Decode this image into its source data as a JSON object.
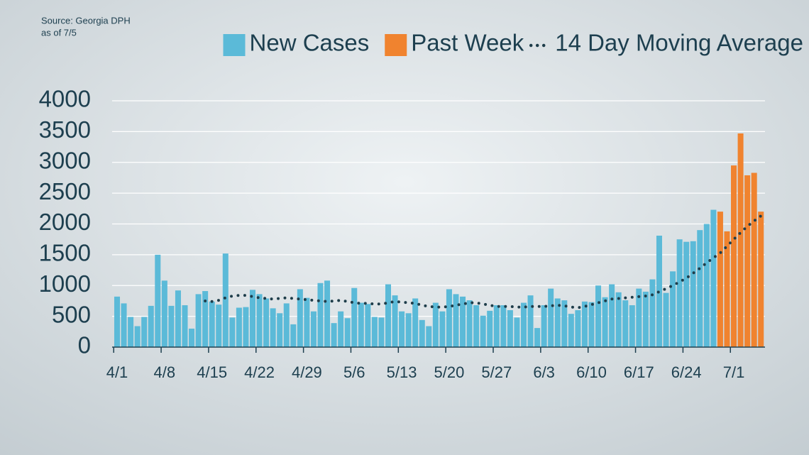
{
  "chart_data": {
    "type": "bar",
    "source": "Source: Georgia DPH",
    "as_of": "as of 7/5",
    "categories": [
      "4/1",
      null,
      null,
      null,
      null,
      null,
      null,
      "4/8",
      null,
      null,
      null,
      null,
      null,
      null,
      "4/15",
      null,
      null,
      null,
      null,
      null,
      null,
      "4/22",
      null,
      null,
      null,
      null,
      null,
      null,
      "4/29",
      null,
      null,
      null,
      null,
      null,
      null,
      "5/6",
      null,
      null,
      null,
      null,
      null,
      null,
      "5/13",
      null,
      null,
      null,
      null,
      null,
      null,
      "5/20",
      null,
      null,
      null,
      null,
      null,
      null,
      "5/27",
      null,
      null,
      null,
      null,
      null,
      null,
      "6/3",
      null,
      null,
      null,
      null,
      null,
      null,
      "6/10",
      null,
      null,
      null,
      null,
      null,
      null,
      "6/17",
      null,
      null,
      null,
      null,
      null,
      null,
      "6/24",
      null,
      null,
      null,
      null,
      null,
      null,
      "7/1",
      null,
      null,
      null,
      null
    ],
    "series": [
      {
        "name": "New Cases",
        "color": "#5bbad8",
        "values": [
          820,
          710,
          490,
          340,
          490,
          670,
          1500,
          1080,
          670,
          920,
          680,
          300,
          860,
          910,
          740,
          690,
          1520,
          480,
          640,
          650,
          930,
          860,
          790,
          630,
          550,
          710,
          370,
          940,
          800,
          580,
          1040,
          1080,
          390,
          580,
          470,
          960,
          720,
          700,
          490,
          480,
          1020,
          840,
          580,
          550,
          790,
          440,
          340,
          720,
          580,
          940,
          860,
          820,
          760,
          680,
          510,
          590,
          680,
          680,
          600,
          480,
          720,
          840,
          310,
          680,
          950,
          790,
          760,
          540,
          600,
          740,
          730,
          1000,
          810,
          1020,
          890,
          760,
          680,
          950,
          900,
          1100,
          1810,
          880,
          1230,
          1750,
          1710,
          1720,
          1900,
          2000,
          2230,
          null,
          null,
          null,
          null,
          null,
          null,
          null
        ]
      },
      {
        "name": "Past Week",
        "color": "#f0832f",
        "values": [
          null,
          null,
          null,
          null,
          null,
          null,
          null,
          null,
          null,
          null,
          null,
          null,
          null,
          null,
          null,
          null,
          null,
          null,
          null,
          null,
          null,
          null,
          null,
          null,
          null,
          null,
          null,
          null,
          null,
          null,
          null,
          null,
          null,
          null,
          null,
          null,
          null,
          null,
          null,
          null,
          null,
          null,
          null,
          null,
          null,
          null,
          null,
          null,
          null,
          null,
          null,
          null,
          null,
          null,
          null,
          null,
          null,
          null,
          null,
          null,
          null,
          null,
          null,
          null,
          null,
          null,
          null,
          null,
          null,
          null,
          null,
          null,
          null,
          null,
          null,
          null,
          null,
          null,
          null,
          null,
          null,
          null,
          null,
          null,
          null,
          null,
          null,
          null,
          null,
          2200,
          1880,
          2950,
          3470,
          2790,
          2830,
          2200
        ]
      },
      {
        "name": "14 Day Moving Average",
        "color": "#1e3d4a",
        "style": "dotted",
        "values": [
          null,
          null,
          null,
          null,
          null,
          null,
          null,
          null,
          null,
          null,
          null,
          null,
          null,
          750,
          740,
          760,
          800,
          830,
          840,
          840,
          820,
          800,
          790,
          780,
          790,
          800,
          790,
          780,
          770,
          760,
          750,
          740,
          750,
          760,
          740,
          720,
          710,
          710,
          700,
          700,
          720,
          740,
          730,
          720,
          710,
          680,
          660,
          650,
          650,
          660,
          680,
          700,
          720,
          720,
          700,
          680,
          660,
          660,
          660,
          650,
          650,
          660,
          660,
          660,
          670,
          680,
          670,
          650,
          640,
          660,
          690,
          720,
          750,
          780,
          790,
          800,
          810,
          820,
          830,
          850,
          900,
          950,
          1000,
          1060,
          1120,
          1200,
          1280,
          1370,
          1450,
          1530,
          1640,
          1750,
          1860,
          1960,
          2050,
          2130
        ]
      }
    ],
    "ylim": [
      0,
      4000
    ],
    "yticks": [
      0,
      500,
      1000,
      1500,
      2000,
      2500,
      3000,
      3500,
      4000
    ],
    "grid": true,
    "legend": "top-right"
  }
}
